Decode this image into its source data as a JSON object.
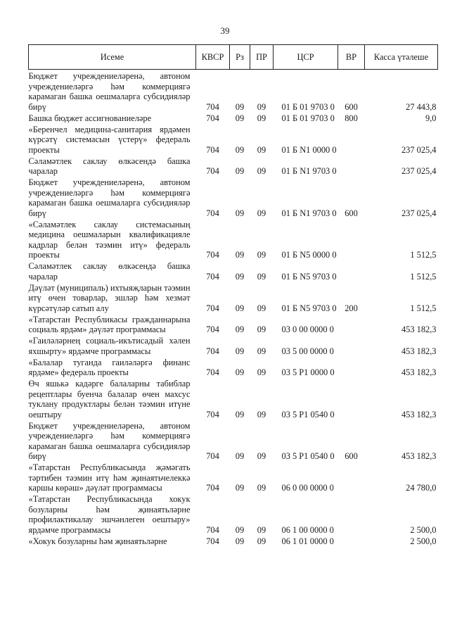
{
  "page_number": "39",
  "headers": {
    "name": "Исеме",
    "kvsr": "КВСР",
    "rz": "Рз",
    "pr": "ПР",
    "csr": "ЦСР",
    "vr": "ВР",
    "kassa": "Касса үтәлеше"
  },
  "rows": [
    {
      "name": "Бюджет учреждениеләренә, автоном учреждениеләргә һәм коммерциягә карамаган башка оешмаларга субсидияләр бирү",
      "kvsr": "704",
      "rz": "09",
      "pr": "09",
      "csr": "01 Б 01 9703 0",
      "vr": "600",
      "kassa": "27 443,8"
    },
    {
      "name": "Башка бюджет ассигнованиеләре",
      "kvsr": "704",
      "rz": "09",
      "pr": "09",
      "csr": "01 Б 01 9703 0",
      "vr": "800",
      "kassa": "9,0"
    },
    {
      "name": "«Беренчел медицина-санитария ярдәмен күрсәтү системасын үстерү» федераль проекты",
      "kvsr": "704",
      "rz": "09",
      "pr": "09",
      "csr": "01 Б N1 0000 0",
      "vr": "",
      "kassa": "237 025,4"
    },
    {
      "name": "Сәламәтлек саклау өлкәсендә башка чаралар",
      "kvsr": "704",
      "rz": "09",
      "pr": "09",
      "csr": "01 Б N1 9703 0",
      "vr": "",
      "kassa": "237 025,4"
    },
    {
      "name": "Бюджет учреждениеләренә, автоном учреждениеләргә һәм коммерциягә карамаган башка оешмаларга субсидияләр бирү",
      "kvsr": "704",
      "rz": "09",
      "pr": "09",
      "csr": "01 Б N1 9703 0",
      "vr": "600",
      "kassa": "237 025,4"
    },
    {
      "name": "«Сәламәтлек саклау системасының медицина оешмаларын квалификацияле кадрлар белән тәэмин итү» федераль проекты",
      "kvsr": "704",
      "rz": "09",
      "pr": "09",
      "csr": "01 Б N5 0000 0",
      "vr": "",
      "kassa": "1 512,5"
    },
    {
      "name": "Сәламәтлек саклау өлкәсендә башка чаралар",
      "kvsr": "704",
      "rz": "09",
      "pr": "09",
      "csr": "01 Б N5 9703 0",
      "vr": "",
      "kassa": "1 512,5"
    },
    {
      "name": "Дәүләт (муниципаль) ихтыяҗларын тәэмин итү өчен товарлар, эшләр һәм хезмәт күрсәтүләр сатып алу",
      "kvsr": "704",
      "rz": "09",
      "pr": "09",
      "csr": "01 Б N5 9703 0",
      "vr": "200",
      "kassa": "1 512,5"
    },
    {
      "name": "«Татарстан Республикасы гражданнарына социаль ярдәм» дәүләт программасы",
      "kvsr": "704",
      "rz": "09",
      "pr": "09",
      "csr": "03 0 00 0000 0",
      "vr": "",
      "kassa": "453 182,3"
    },
    {
      "name": "«Гаиләләрнең социаль-икътисадый хәлен яхшырту» ярдәмче программасы",
      "kvsr": "704",
      "rz": "09",
      "pr": "09",
      "csr": "03 5 00 0000 0",
      "vr": "",
      "kassa": "453 182,3"
    },
    {
      "name": "«Балалар туганда гаиләләргә финанс ярдәме» федераль проекты",
      "kvsr": "704",
      "rz": "09",
      "pr": "09",
      "csr": "03 5 P1 0000 0",
      "vr": "",
      "kassa": "453 182,3"
    },
    {
      "name": "Өч яшькә кадәрге балаларны табиблар рецептлары буенча балалар өчен махсус туклану продуктлары белән тәэмин итүне оештыру",
      "kvsr": "704",
      "rz": "09",
      "pr": "09",
      "csr": "03 5 P1 0540 0",
      "vr": "",
      "kassa": "453 182,3"
    },
    {
      "name": "Бюджет учреждениеләренә, автоном учреждениеләргә һәм коммерциягә карамаган башка оешмаларга субсидияләр бирү",
      "kvsr": "704",
      "rz": "09",
      "pr": "09",
      "csr": "03 5 P1 0540 0",
      "vr": "600",
      "kassa": "453 182,3"
    },
    {
      "name": "«Татарстан Республикасында җәмәгать тәртибен тәэмин итү һәм җинаятьчелеккә каршы көрәш» дәүләт программасы",
      "kvsr": "704",
      "rz": "09",
      "pr": "09",
      "csr": "06 0 00 0000 0",
      "vr": "",
      "kassa": "24 780,0"
    },
    {
      "name": "«Татарстан Республикасында хокук бозуларны һәм җинаятьләрне профилактикалау эшчәнлеген оештыру» ярдәмче программасы",
      "kvsr": "704",
      "rz": "09",
      "pr": "09",
      "csr": "06 1 00 0000 0",
      "vr": "",
      "kassa": "2 500,0"
    },
    {
      "name": "«Хокук бозуларны һәм җинаятьләрне",
      "kvsr": "704",
      "rz": "09",
      "pr": "09",
      "csr": "06 1 01 0000 0",
      "vr": "",
      "kassa": "2 500,0"
    }
  ]
}
